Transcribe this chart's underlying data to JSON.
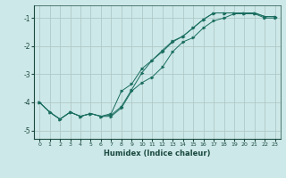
{
  "xlabel": "Humidex (Indice chaleur)",
  "bg_color": "#cde8e8",
  "grid_color": "#b0c8c8",
  "line_color": "#1a6e60",
  "xlim": [
    -0.5,
    23.5
  ],
  "ylim": [
    -5.3,
    -0.55
  ],
  "yticks": [
    -5,
    -4,
    -3,
    -2,
    -1
  ],
  "xticks": [
    0,
    1,
    2,
    3,
    4,
    5,
    6,
    7,
    8,
    9,
    10,
    11,
    12,
    13,
    14,
    15,
    16,
    17,
    18,
    19,
    20,
    21,
    22,
    23
  ],
  "line1_x": [
    0,
    1,
    2,
    3,
    4,
    5,
    6,
    7,
    8,
    9,
    10,
    11,
    12,
    13,
    14,
    15,
    16,
    17,
    18,
    19,
    20,
    21,
    22,
    23
  ],
  "line1_y": [
    -4.0,
    -4.35,
    -4.6,
    -4.35,
    -4.5,
    -4.4,
    -4.5,
    -4.5,
    -4.2,
    -3.6,
    -3.3,
    -3.1,
    -2.75,
    -2.2,
    -1.85,
    -1.7,
    -1.35,
    -1.1,
    -1.0,
    -0.85,
    -0.85,
    -0.85,
    -1.0,
    -1.0
  ],
  "line2_x": [
    0,
    1,
    2,
    3,
    4,
    5,
    6,
    7,
    8,
    9,
    10,
    11,
    12,
    13,
    14,
    15,
    16,
    17,
    18,
    19,
    20,
    21,
    22,
    23
  ],
  "line2_y": [
    -4.0,
    -4.35,
    -4.6,
    -4.35,
    -4.5,
    -4.4,
    -4.5,
    -4.45,
    -4.15,
    -3.55,
    -2.95,
    -2.5,
    -2.2,
    -1.85,
    -1.65,
    -1.35,
    -1.05,
    -0.82,
    -0.82,
    -0.82,
    -0.82,
    -0.82,
    -0.95,
    -0.95
  ],
  "line3_x": [
    0,
    1,
    2,
    3,
    4,
    5,
    6,
    7,
    8,
    9,
    10,
    11,
    12,
    13,
    14,
    15,
    16,
    17,
    18,
    19,
    20,
    21,
    22,
    23
  ],
  "line3_y": [
    -4.0,
    -4.35,
    -4.6,
    -4.35,
    -4.5,
    -4.4,
    -4.5,
    -4.4,
    -3.6,
    -3.35,
    -2.8,
    -2.5,
    -2.15,
    -1.82,
    -1.65,
    -1.35,
    -1.05,
    -0.82,
    -0.82,
    -0.82,
    -0.82,
    -0.82,
    -0.95,
    -0.95
  ]
}
